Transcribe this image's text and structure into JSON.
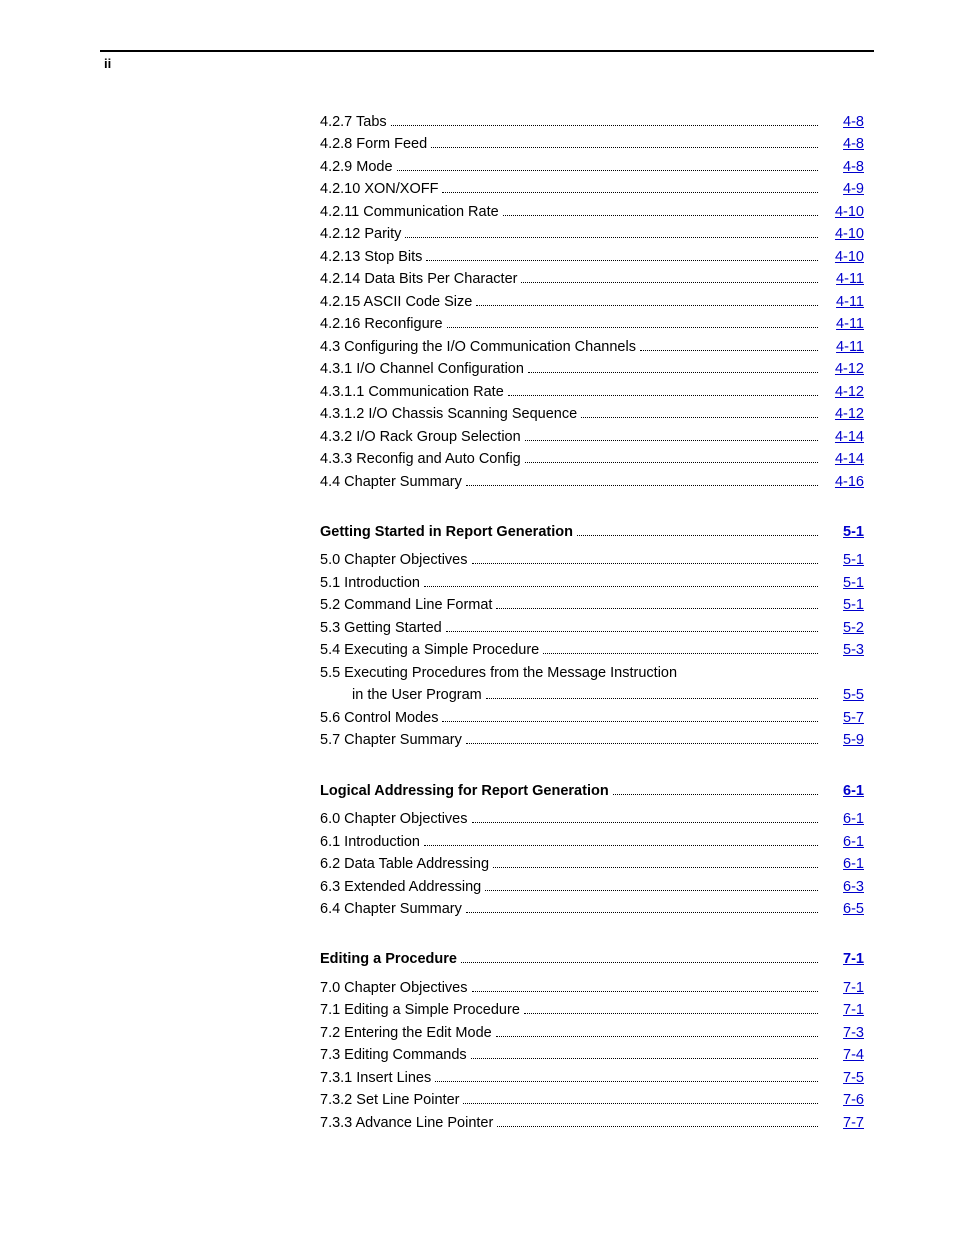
{
  "page_number_top": "ii",
  "sections": [
    {
      "header": null,
      "entries": [
        {
          "label": "4.2.7 Tabs",
          "page": "4-8",
          "indent": false
        },
        {
          "label": "4.2.8 Form Feed",
          "page": "4-8",
          "indent": false
        },
        {
          "label": "4.2.9 Mode",
          "page": "4-8",
          "indent": false
        },
        {
          "label": "4.2.10 XON/XOFF",
          "page": "4-9",
          "indent": false
        },
        {
          "label": "4.2.11 Communication Rate",
          "page": "4-10",
          "indent": false
        },
        {
          "label": "4.2.12 Parity",
          "page": "4-10",
          "indent": false
        },
        {
          "label": "4.2.13 Stop Bits",
          "page": "4-10",
          "indent": false
        },
        {
          "label": "4.2.14 Data Bits Per Character",
          "page": "4-11",
          "indent": false
        },
        {
          "label": "4.2.15 ASCII Code Size",
          "page": "4-11",
          "indent": false
        },
        {
          "label": "4.2.16 Reconfigure",
          "page": "4-11",
          "indent": false
        },
        {
          "label": "4.3 Configuring the I/O Communication Channels",
          "page": "4-11",
          "indent": false
        },
        {
          "label": "4.3.1 I/O Channel Configuration",
          "page": "4-12",
          "indent": false
        },
        {
          "label": "4.3.1.1 Communication Rate",
          "page": "4-12",
          "indent": false
        },
        {
          "label": "4.3.1.2 I/O Chassis Scanning Sequence",
          "page": "4-12",
          "indent": false
        },
        {
          "label": "4.3.2 I/O Rack Group Selection",
          "page": "4-14",
          "indent": false
        },
        {
          "label": "4.3.3 Reconfig and Auto Config",
          "page": "4-14",
          "indent": false
        },
        {
          "label": "4.4 Chapter Summary",
          "page": "4-16",
          "indent": false
        }
      ]
    },
    {
      "header": {
        "label": "Getting Started in Report Generation",
        "page": "5-1"
      },
      "entries": [
        {
          "label": "5.0  Chapter Objectives",
          "page": "5-1",
          "indent": false
        },
        {
          "label": "5.1 Introduction",
          "page": "5-1",
          "indent": false
        },
        {
          "label": "5.2 Command Line Format",
          "page": "5-1",
          "indent": false
        },
        {
          "label": "5.3 Getting Started",
          "page": "5-2",
          "indent": false
        },
        {
          "label": "5.4 Executing a Simple Procedure",
          "page": "5-3",
          "indent": false
        },
        {
          "label": "5.5 Executing Procedures from the Message Instruction",
          "page": null,
          "indent": false,
          "nodots": true
        },
        {
          "label": "in the User Program",
          "page": "5-5",
          "indent": true
        },
        {
          "label": "5.6 Control Modes",
          "page": "5-7",
          "indent": false
        },
        {
          "label": "5.7 Chapter Summary",
          "page": "5-9",
          "indent": false
        }
      ]
    },
    {
      "header": {
        "label": "Logical Addressing for Report Generation",
        "page": "6-1"
      },
      "entries": [
        {
          "label": "6.0  Chapter Objectives",
          "page": "6-1",
          "indent": false
        },
        {
          "label": "6.1 Introduction",
          "page": "6-1",
          "indent": false
        },
        {
          "label": "6.2 Data Table Addressing",
          "page": "6-1",
          "indent": false
        },
        {
          "label": "6.3 Extended Addressing",
          "page": "6-3",
          "indent": false
        },
        {
          "label": "6.4 Chapter Summary",
          "page": "6-5",
          "indent": false
        }
      ]
    },
    {
      "header": {
        "label": "Editing a Procedure",
        "page": "7-1"
      },
      "entries": [
        {
          "label": "7.0  Chapter Objectives",
          "page": "7-1",
          "indent": false
        },
        {
          "label": "7.1 Editing a Simple Procedure",
          "page": "7-1",
          "indent": false
        },
        {
          "label": "7.2 Entering the Edit Mode",
          "page": "7-3",
          "indent": false
        },
        {
          "label": "7.3 Editing Commands",
          "page": "7-4",
          "indent": false
        },
        {
          "label": "7.3.1 Insert Lines",
          "page": "7-5",
          "indent": false
        },
        {
          "label": "7.3.2 Set Line Pointer",
          "page": "7-6",
          "indent": false
        },
        {
          "label": "7.3.3 Advance Line Pointer",
          "page": "7-7",
          "indent": false
        }
      ]
    }
  ]
}
